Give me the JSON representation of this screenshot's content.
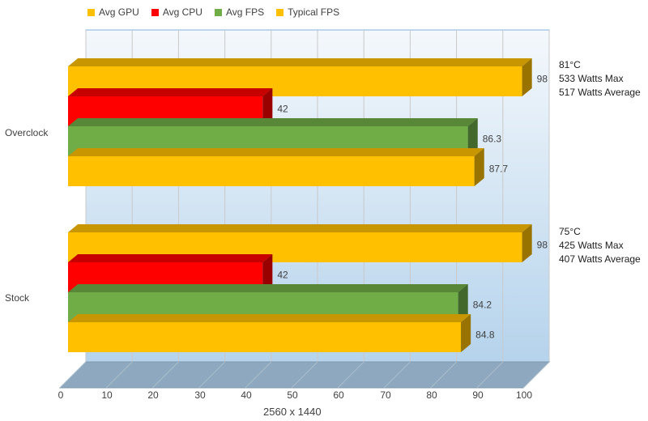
{
  "chart_data": {
    "type": "bar",
    "orientation": "horizontal",
    "style": "3d",
    "categories": [
      "Overclock",
      "Stock"
    ],
    "series": [
      {
        "name": "Avg GPU",
        "color": "#FFC000",
        "values": [
          98,
          98
        ]
      },
      {
        "name": "Avg CPU",
        "color": "#FF0000",
        "values": [
          42,
          42
        ]
      },
      {
        "name": "Avg FPS",
        "color": "#70AD47",
        "values": [
          86.3,
          84.2
        ]
      },
      {
        "name": "Typical FPS",
        "color": "#FFC000",
        "values": [
          87.7,
          84.8
        ]
      }
    ],
    "xlabel": "2560 x 1440",
    "xlim": [
      0,
      100
    ],
    "xticks": [
      0,
      10,
      20,
      30,
      40,
      50,
      60,
      70,
      80,
      90,
      100
    ],
    "grid": true,
    "legend_position": "top-left",
    "annotations": [
      {
        "category": "Overclock",
        "lines": [
          "81°C",
          "533 Watts Max",
          "517 Watts Average"
        ]
      },
      {
        "category": "Stock",
        "lines": [
          "75°C",
          "425 Watts Max",
          "407 Watts Average"
        ]
      }
    ]
  }
}
